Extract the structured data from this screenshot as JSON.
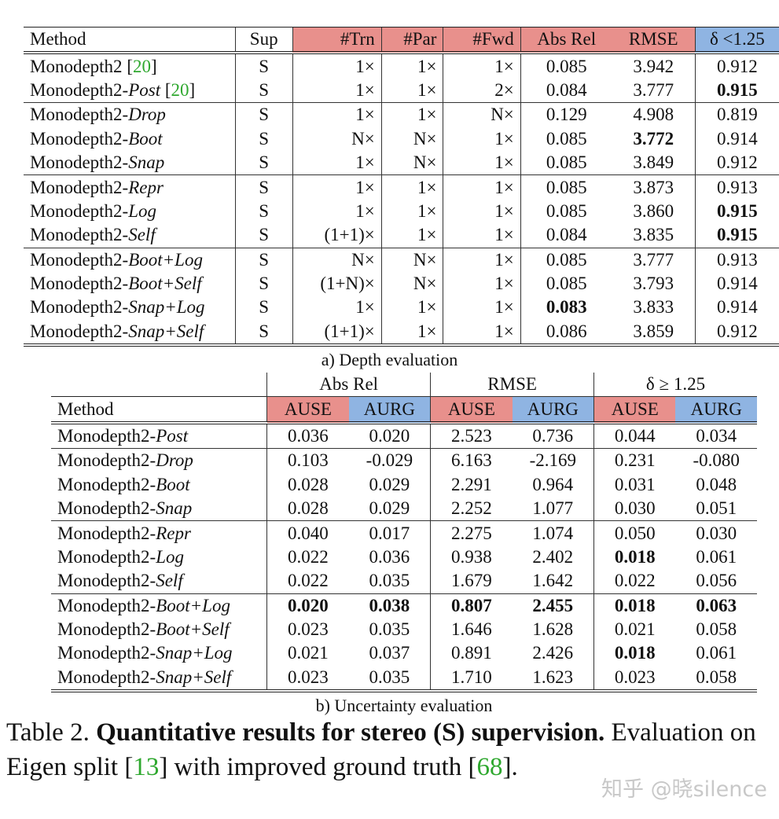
{
  "colors": {
    "red_header": "#e8908c",
    "blue_header": "#8fb4e2",
    "citation": "#2fa82f"
  },
  "table_a": {
    "headers": [
      "Method",
      "Sup",
      "#Trn",
      "#Par",
      "#Fwd",
      "Abs Rel",
      "RMSE",
      "δ <1.25"
    ],
    "groups": [
      [
        {
          "base": "Monodepth2",
          "suffix": "",
          "ref": "20",
          "cells": [
            "S",
            "1×",
            "1×",
            "1×",
            "0.085",
            "3.942",
            "0.912"
          ],
          "bold": []
        },
        {
          "base": "Monodepth2-",
          "suffix": "Post",
          "ref": "20",
          "cells": [
            "S",
            "1×",
            "1×",
            "2×",
            "0.084",
            "3.777",
            "0.915"
          ],
          "bold": [
            6
          ]
        }
      ],
      [
        {
          "base": "Monodepth2-",
          "suffix": "Drop",
          "cells": [
            "S",
            "1×",
            "1×",
            "N×",
            "0.129",
            "4.908",
            "0.819"
          ],
          "bold": []
        },
        {
          "base": "Monodepth2-",
          "suffix": "Boot",
          "cells": [
            "S",
            "N×",
            "N×",
            "1×",
            "0.085",
            "3.772",
            "0.914"
          ],
          "bold": [
            5
          ]
        },
        {
          "base": "Monodepth2-",
          "suffix": "Snap",
          "cells": [
            "S",
            "1×",
            "N×",
            "1×",
            "0.085",
            "3.849",
            "0.912"
          ],
          "bold": []
        }
      ],
      [
        {
          "base": "Monodepth2-",
          "suffix": "Repr",
          "cells": [
            "S",
            "1×",
            "1×",
            "1×",
            "0.085",
            "3.873",
            "0.913"
          ],
          "bold": []
        },
        {
          "base": "Monodepth2-",
          "suffix": "Log",
          "cells": [
            "S",
            "1×",
            "1×",
            "1×",
            "0.085",
            "3.860",
            "0.915"
          ],
          "bold": [
            6
          ]
        },
        {
          "base": "Monodepth2-",
          "suffix": "Self",
          "cells": [
            "S",
            "(1+1)×",
            "1×",
            "1×",
            "0.084",
            "3.835",
            "0.915"
          ],
          "bold": [
            6
          ]
        }
      ],
      [
        {
          "base": "Monodepth2-",
          "suffix": "Boot+Log",
          "cells": [
            "S",
            "N×",
            "N×",
            "1×",
            "0.085",
            "3.777",
            "0.913"
          ],
          "bold": []
        },
        {
          "base": "Monodepth2-",
          "suffix": "Boot+Self",
          "cells": [
            "S",
            "(1+N)×",
            "N×",
            "1×",
            "0.085",
            "3.793",
            "0.914"
          ],
          "bold": []
        },
        {
          "base": "Monodepth2-",
          "suffix": "Snap+Log",
          "cells": [
            "S",
            "1×",
            "1×",
            "1×",
            "0.083",
            "3.833",
            "0.914"
          ],
          "bold": [
            4
          ]
        },
        {
          "base": "Monodepth2-",
          "suffix": "Snap+Self",
          "cells": [
            "S",
            "(1+1)×",
            "1×",
            "1×",
            "0.086",
            "3.859",
            "0.912"
          ],
          "bold": []
        }
      ]
    ],
    "caption": "a) Depth evaluation"
  },
  "table_b": {
    "group_headers": [
      "Abs Rel",
      "RMSE",
      "δ ≥ 1.25"
    ],
    "headers": [
      "Method",
      "AUSE",
      "AURG",
      "AUSE",
      "AURG",
      "AUSE",
      "AURG"
    ],
    "groups": [
      [
        {
          "base": "Monodepth2-",
          "suffix": "Post",
          "cells": [
            "0.036",
            "0.020",
            "2.523",
            "0.736",
            "0.044",
            "0.034"
          ],
          "bold": []
        }
      ],
      [
        {
          "base": "Monodepth2-",
          "suffix": "Drop",
          "cells": [
            "0.103",
            "-0.029",
            "6.163",
            "-2.169",
            "0.231",
            "-0.080"
          ],
          "bold": []
        },
        {
          "base": "Monodepth2-",
          "suffix": "Boot",
          "cells": [
            "0.028",
            "0.029",
            "2.291",
            "0.964",
            "0.031",
            "0.048"
          ],
          "bold": []
        },
        {
          "base": "Monodepth2-",
          "suffix": "Snap",
          "cells": [
            "0.028",
            "0.029",
            "2.252",
            "1.077",
            "0.030",
            "0.051"
          ],
          "bold": []
        }
      ],
      [
        {
          "base": "Monodepth2-",
          "suffix": "Repr",
          "cells": [
            "0.040",
            "0.017",
            "2.275",
            "1.074",
            "0.050",
            "0.030"
          ],
          "bold": []
        },
        {
          "base": "Monodepth2-",
          "suffix": "Log",
          "cells": [
            "0.022",
            "0.036",
            "0.938",
            "2.402",
            "0.018",
            "0.061"
          ],
          "bold": [
            4
          ]
        },
        {
          "base": "Monodepth2-",
          "suffix": "Self",
          "cells": [
            "0.022",
            "0.035",
            "1.679",
            "1.642",
            "0.022",
            "0.056"
          ],
          "bold": []
        }
      ],
      [
        {
          "base": "Monodepth2-",
          "suffix": "Boot+Log",
          "cells": [
            "0.020",
            "0.038",
            "0.807",
            "2.455",
            "0.018",
            "0.063"
          ],
          "bold": [
            0,
            1,
            2,
            3,
            4,
            5
          ]
        },
        {
          "base": "Monodepth2-",
          "suffix": "Boot+Self",
          "cells": [
            "0.023",
            "0.035",
            "1.646",
            "1.628",
            "0.021",
            "0.058"
          ],
          "bold": []
        },
        {
          "base": "Monodepth2-",
          "suffix": "Snap+Log",
          "cells": [
            "0.021",
            "0.037",
            "0.891",
            "2.426",
            "0.018",
            "0.061"
          ],
          "bold": [
            4
          ]
        },
        {
          "base": "Monodepth2-",
          "suffix": "Snap+Self",
          "cells": [
            "0.023",
            "0.035",
            "1.710",
            "1.623",
            "0.023",
            "0.058"
          ],
          "bold": []
        }
      ]
    ],
    "caption": "b) Uncertainty evaluation"
  },
  "caption": {
    "label": "Table 2. ",
    "bold": "Quantitative results for stereo (S) supervision.",
    "text1": " Evaluation on Eigen split [",
    "ref1": "13",
    "text2": "] with improved ground truth [",
    "ref2": "68",
    "text3": "]."
  },
  "watermark": "知乎 @晓silence"
}
